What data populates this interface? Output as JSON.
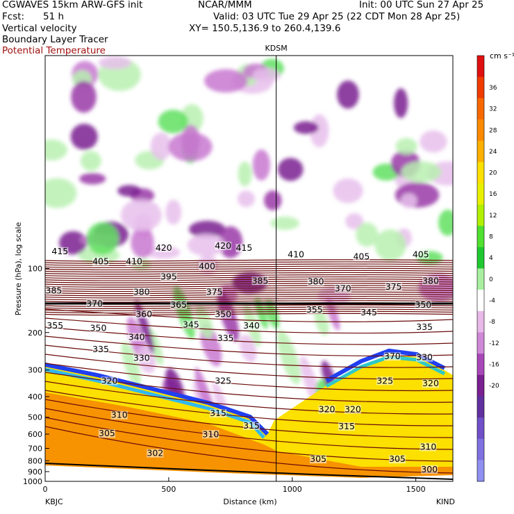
{
  "header": {
    "model": "CGWAVES 15km ARW-GFS init",
    "org": "NCAR/MMM",
    "init": "Init: 00 UTC Sun 27 Apr 25",
    "fcst_label": "Fcst:",
    "fcst_value": "51 h",
    "valid": "Valid: 03 UTC Tue 29 Apr 25 (22 CDT Mon 28 Apr 25)",
    "xy": "XY= 150.5,136.9 to 260.4,139.6",
    "fields": [
      "Vertical velocity",
      "Boundary Layer Tracer",
      "Potential Temperature"
    ]
  },
  "colors": {
    "theta": "#6b0a0a",
    "terrain": "#000000"
  },
  "chart_data": {
    "type": "heatmap",
    "xlabel": "Distance (km)",
    "ylabel": "Pressure (hPa), log scale",
    "xlim": [
      0,
      1650
    ],
    "ylim": [
      1000,
      10
    ],
    "y_scale": "log",
    "x_ticks": [
      0,
      500,
      1000,
      1500
    ],
    "y_ticks": [
      100,
      200,
      300,
      400,
      500,
      600,
      700,
      800,
      900,
      1000
    ],
    "marker": {
      "label": "KDSM",
      "x": 935
    },
    "endpoints": {
      "left": "KBJC",
      "right": "KIND"
    },
    "colorbar": {
      "units": "cm s⁻¹",
      "labels": [
        "36",
        "32",
        "28",
        "24",
        "20",
        "16",
        "12",
        "8",
        "4",
        "0",
        "-4",
        "-8",
        "-12",
        "-16",
        "-20"
      ],
      "colors": [
        "#e01010",
        "#f03a00",
        "#f86800",
        "#fb8a00",
        "#fcb000",
        "#fde000",
        "#e8f000",
        "#b0f000",
        "#50e030",
        "#20c830",
        "#a8f0a0",
        "#ffffff",
        "#e8b8e8",
        "#d088d8",
        "#a848b8",
        "#7a2090",
        "#6030a0",
        "#7050c8",
        "#8070e0",
        "#9090f0"
      ]
    },
    "theta_labels": [
      {
        "v": "415",
        "x": 60,
        "p": 85
      },
      {
        "v": "420",
        "x": 480,
        "p": 82
      },
      {
        "v": "420",
        "x": 720,
        "p": 80
      },
      {
        "v": "415",
        "x": 805,
        "p": 82
      },
      {
        "v": "410",
        "x": 1015,
        "p": 88
      },
      {
        "v": "405",
        "x": 1280,
        "p": 90
      },
      {
        "v": "405",
        "x": 1520,
        "p": 88
      },
      {
        "v": "405",
        "x": 225,
        "p": 95
      },
      {
        "v": "410",
        "x": 360,
        "p": 95
      },
      {
        "v": "400",
        "x": 655,
        "p": 100
      },
      {
        "v": "395",
        "x": 500,
        "p": 112
      },
      {
        "v": "385",
        "x": 870,
        "p": 117
      },
      {
        "v": "380",
        "x": 1095,
        "p": 118
      },
      {
        "v": "375",
        "x": 1410,
        "p": 125
      },
      {
        "v": "380",
        "x": 1560,
        "p": 117
      },
      {
        "v": "385",
        "x": 35,
        "p": 130
      },
      {
        "v": "380",
        "x": 390,
        "p": 132
      },
      {
        "v": "375",
        "x": 685,
        "p": 132
      },
      {
        "v": "370",
        "x": 1205,
        "p": 127
      },
      {
        "v": "370",
        "x": 200,
        "p": 150
      },
      {
        "v": "365",
        "x": 540,
        "p": 152
      },
      {
        "v": "350",
        "x": 1530,
        "p": 152
      },
      {
        "v": "355",
        "x": 1090,
        "p": 160
      },
      {
        "v": "360",
        "x": 400,
        "p": 168
      },
      {
        "v": "350",
        "x": 720,
        "p": 168
      },
      {
        "v": "345",
        "x": 1310,
        "p": 165
      },
      {
        "v": "340",
        "x": 835,
        "p": 190
      },
      {
        "v": "345",
        "x": 590,
        "p": 188
      },
      {
        "v": "355",
        "x": 40,
        "p": 190
      },
      {
        "v": "350",
        "x": 215,
        "p": 195
      },
      {
        "v": "335",
        "x": 1535,
        "p": 193
      },
      {
        "v": "340",
        "x": 370,
        "p": 215
      },
      {
        "v": "335",
        "x": 730,
        "p": 218
      },
      {
        "v": "335",
        "x": 225,
        "p": 245
      },
      {
        "v": "330",
        "x": 390,
        "p": 270
      },
      {
        "v": "370",
        "x": 1405,
        "p": 265
      },
      {
        "v": "330",
        "x": 1535,
        "p": 268
      },
      {
        "v": "320",
        "x": 260,
        "p": 345
      },
      {
        "v": "325",
        "x": 720,
        "p": 345
      },
      {
        "v": "325",
        "x": 1375,
        "p": 345
      },
      {
        "v": "320",
        "x": 1560,
        "p": 355
      },
      {
        "v": "320",
        "x": 1140,
        "p": 470
      },
      {
        "v": "320",
        "x": 1245,
        "p": 470
      },
      {
        "v": "315",
        "x": 700,
        "p": 490
      },
      {
        "v": "310",
        "x": 300,
        "p": 500
      },
      {
        "v": "315",
        "x": 835,
        "p": 560
      },
      {
        "v": "315",
        "x": 1220,
        "p": 565
      },
      {
        "v": "305",
        "x": 250,
        "p": 610
      },
      {
        "v": "310",
        "x": 670,
        "p": 615
      },
      {
        "v": "310",
        "x": 1550,
        "p": 705
      },
      {
        "v": "302",
        "x": 445,
        "p": 755
      },
      {
        "v": "305",
        "x": 1105,
        "p": 805
      },
      {
        "v": "305",
        "x": 1425,
        "p": 805
      },
      {
        "v": "300",
        "x": 1555,
        "p": 900
      }
    ]
  }
}
